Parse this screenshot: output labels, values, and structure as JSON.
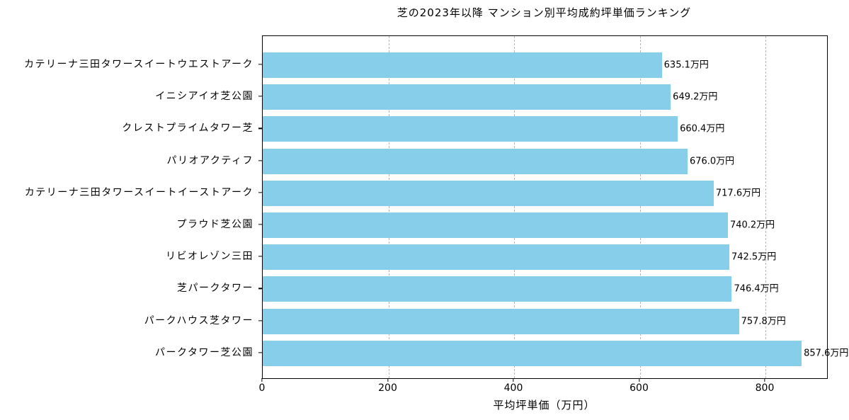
{
  "chart_data": {
    "type": "bar",
    "orientation": "horizontal",
    "title": "芝の2023年以降 マンション別平均成約坪単価ランキング",
    "xlabel": "平均坪単価（万円）",
    "ylabel": "",
    "categories": [
      "カテリーナ三田タワースイートウエストアーク",
      "イニシアイオ芝公園",
      "クレストプライムタワー芝",
      "パリオアクティフ",
      "カテリーナ三田タワースイートイーストアーク",
      "プラウド芝公園",
      "リビオレゾン三田",
      "芝パークタワー",
      "パークハウス芝タワー",
      "パークタワー芝公園"
    ],
    "values": [
      635.1,
      649.2,
      660.4,
      676.0,
      717.6,
      740.2,
      742.5,
      746.4,
      757.8,
      857.6
    ],
    "value_labels": [
      "635.1万円",
      "649.2万円",
      "660.4万円",
      "676.0万円",
      "717.6万円",
      "740.2万円",
      "742.5万円",
      "746.4万円",
      "757.8万円",
      "857.6万円"
    ],
    "xticks": [
      0,
      200,
      400,
      600,
      800
    ],
    "xtick_labels": [
      "0",
      "200",
      "400",
      "600",
      "800"
    ],
    "xlim": [
      0,
      898
    ],
    "grid": {
      "axis": "x",
      "style": "dashed",
      "color": "#b4b4b4"
    },
    "bar_color": "#87CEEB",
    "spine_color": "#000000",
    "legend_position": "none"
  }
}
